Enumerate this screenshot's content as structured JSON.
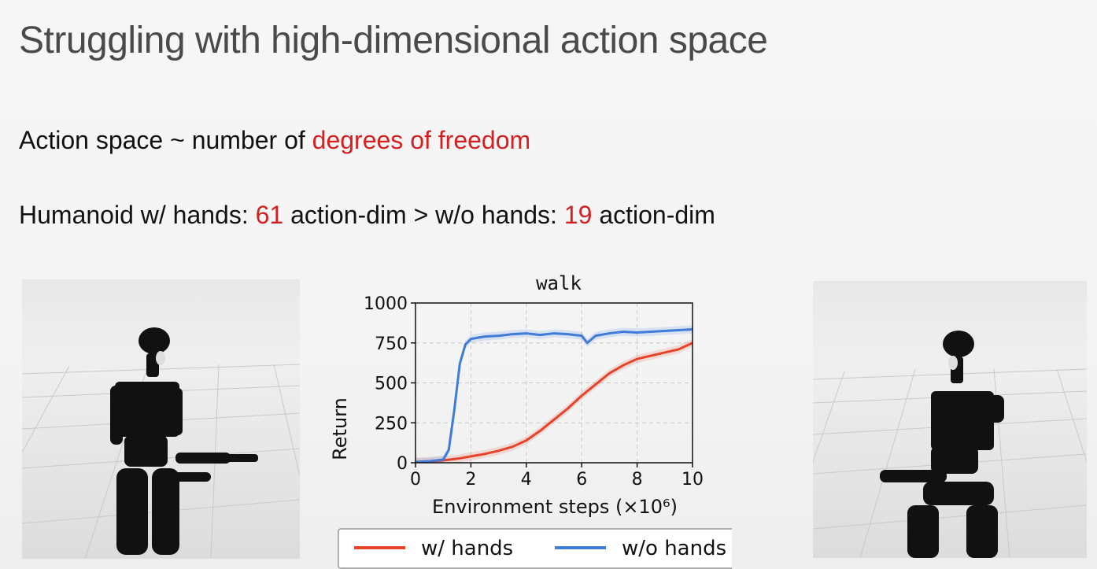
{
  "slide": {
    "title": "Struggling with high-dimensional action space",
    "line1": {
      "prefix": "Action space ~ number of ",
      "highlight": "degrees of freedom"
    },
    "line2": {
      "part1": "Humanoid w/ hands: ",
      "num1": "61",
      "part2": " action-dim > w/o hands: ",
      "num2": "19",
      "part3": " action-dim"
    },
    "accent_color": "#d42020"
  },
  "chart_data": {
    "type": "line",
    "title": "walk",
    "xlabel": "Environment steps (×10⁶)",
    "ylabel": "Return",
    "xlim": [
      0,
      10
    ],
    "ylim": [
      0,
      1000
    ],
    "xticks": [
      "0",
      "2",
      "4",
      "6",
      "8",
      "10"
    ],
    "yticks": [
      "0",
      "250",
      "500",
      "750",
      "1000"
    ],
    "grid": true,
    "legend_position": "bottom",
    "series": [
      {
        "name": "w/ hands",
        "color": "#e5442a",
        "x": [
          0,
          0.5,
          1,
          1.5,
          2,
          2.5,
          3,
          3.5,
          4,
          4.5,
          5,
          5.5,
          6,
          6.5,
          7,
          7.5,
          8,
          8.5,
          9,
          9.5,
          10
        ],
        "y": [
          5,
          8,
          15,
          25,
          40,
          55,
          75,
          100,
          140,
          200,
          270,
          340,
          420,
          490,
          560,
          610,
          650,
          670,
          690,
          710,
          750
        ]
      },
      {
        "name": "w/o hands",
        "color": "#3f7bd9",
        "x": [
          0,
          0.5,
          1,
          1.2,
          1.4,
          1.6,
          1.8,
          2,
          2.5,
          3,
          3.5,
          4,
          4.5,
          5,
          5.5,
          6,
          6.2,
          6.5,
          7,
          7.5,
          8,
          8.5,
          9,
          9.5,
          10
        ],
        "y": [
          5,
          10,
          20,
          80,
          330,
          620,
          740,
          775,
          790,
          795,
          805,
          810,
          800,
          810,
          805,
          795,
          750,
          795,
          810,
          820,
          815,
          820,
          825,
          830,
          835
        ]
      }
    ]
  }
}
